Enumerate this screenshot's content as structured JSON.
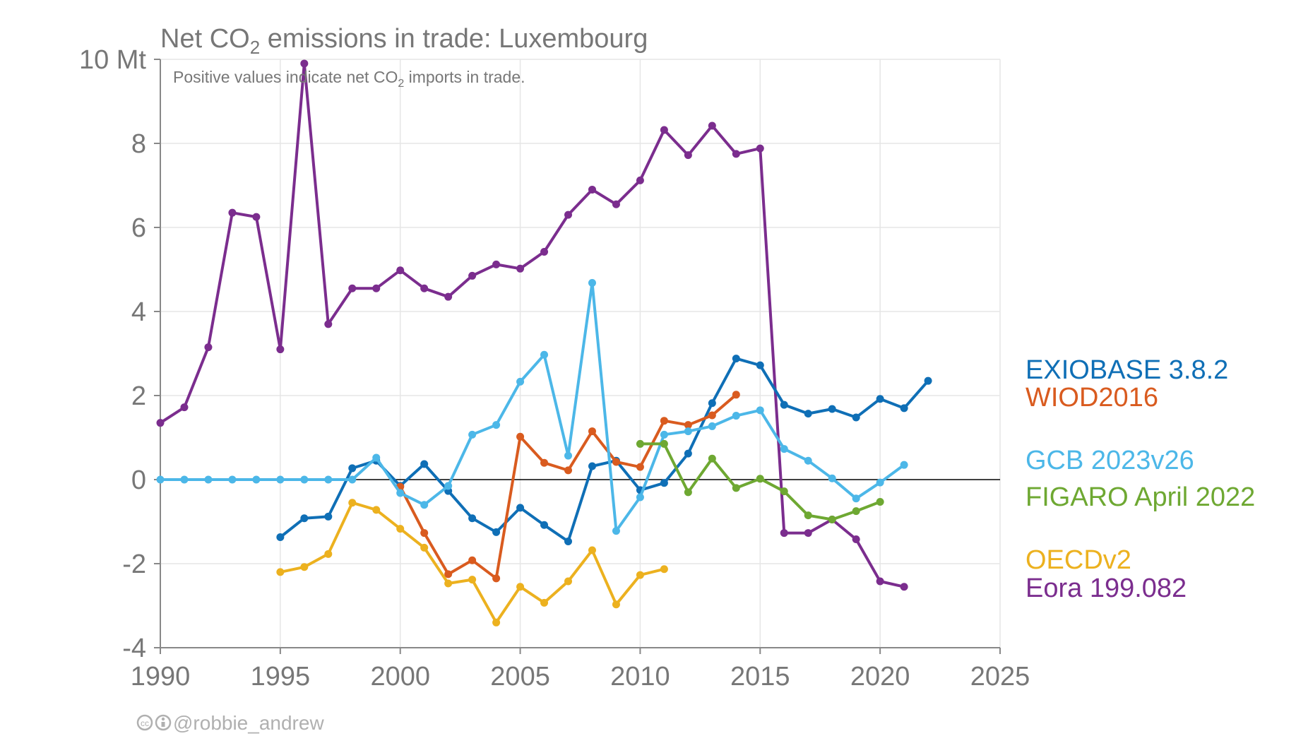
{
  "chart_data": {
    "type": "line",
    "title": "Net CO2 emissions in trade: Luxembourg",
    "title_parts": {
      "before": "Net CO",
      "sub": "2",
      "after": " emissions in trade: Luxembourg"
    },
    "subtitle": "Positive values indicate net CO2 imports in trade.",
    "subtitle_parts": {
      "before": "Positive values indicate net CO",
      "sub": "2",
      "after": " imports in trade."
    },
    "credit": "@robbie_andrew",
    "xlim": [
      1990,
      2025
    ],
    "ylim": [
      -4,
      10
    ],
    "x_ticks": [
      1990,
      1995,
      2000,
      2005,
      2010,
      2015,
      2020,
      2025
    ],
    "y_ticks": [
      -4,
      -2,
      0,
      2,
      4,
      6,
      8,
      10
    ],
    "y_tick_labels": [
      "-4",
      "-2",
      "0",
      "2",
      "4",
      "6",
      "8",
      "10 Mt"
    ],
    "grid": true,
    "legend_placement": "right",
    "series": [
      {
        "name": "Eora 199.082",
        "color": "#7b2d8e",
        "x": [
          1990,
          1991,
          1992,
          1993,
          1994,
          1995,
          1996,
          1997,
          1998,
          1999,
          2000,
          2001,
          2002,
          2003,
          2004,
          2005,
          2006,
          2007,
          2008,
          2009,
          2010,
          2011,
          2012,
          2013,
          2014,
          2015,
          2016,
          2017,
          2018,
          2019,
          2020,
          2021
        ],
        "y": [
          1.35,
          1.72,
          3.15,
          6.35,
          6.25,
          3.1,
          9.9,
          3.7,
          4.55,
          4.55,
          4.98,
          4.55,
          4.35,
          4.85,
          5.12,
          5.02,
          5.42,
          6.3,
          6.9,
          6.55,
          7.12,
          8.32,
          7.72,
          8.42,
          7.75,
          7.88,
          -1.27,
          -1.27,
          -0.95,
          -1.42,
          -2.42,
          -2.55
        ]
      },
      {
        "name": "EXIOBASE 3.8.2",
        "color": "#0f6fb6",
        "x": [
          1995,
          1996,
          1997,
          1998,
          1999,
          2000,
          2001,
          2002,
          2003,
          2004,
          2005,
          2006,
          2007,
          2008,
          2009,
          2010,
          2011,
          2012,
          2013,
          2014,
          2015,
          2016,
          2017,
          2018,
          2019,
          2020,
          2021,
          2022
        ],
        "y": [
          -1.37,
          -0.92,
          -0.88,
          0.27,
          0.45,
          -0.15,
          0.37,
          -0.27,
          -0.92,
          -1.25,
          -0.67,
          -1.08,
          -1.47,
          0.32,
          0.45,
          -0.25,
          -0.08,
          0.62,
          1.82,
          2.88,
          2.72,
          1.78,
          1.57,
          1.68,
          1.48,
          1.92,
          1.7,
          2.35
        ]
      },
      {
        "name": "WIOD2016",
        "color": "#d95b1f",
        "x": [
          2000,
          2001,
          2002,
          2003,
          2004,
          2005,
          2006,
          2007,
          2008,
          2009,
          2010,
          2011,
          2012,
          2013,
          2014
        ],
        "y": [
          -0.17,
          -1.27,
          -2.25,
          -1.92,
          -2.35,
          1.02,
          0.4,
          0.22,
          1.15,
          0.42,
          0.3,
          1.4,
          1.3,
          1.53,
          2.02
        ]
      },
      {
        "name": "GCB 2023v26",
        "color": "#4cb7e8",
        "x": [
          1990,
          1991,
          1992,
          1993,
          1994,
          1995,
          1996,
          1997,
          1998,
          1999,
          2000,
          2001,
          2002,
          2003,
          2004,
          2005,
          2006,
          2007,
          2008,
          2009,
          2010,
          2011,
          2012,
          2013,
          2014,
          2015,
          2016,
          2017,
          2018,
          2019,
          2020,
          2021
        ],
        "y": [
          0,
          0,
          0,
          0,
          0,
          0,
          0,
          0,
          0,
          0.52,
          -0.32,
          -0.6,
          -0.15,
          1.07,
          1.3,
          2.33,
          2.97,
          0.57,
          4.68,
          -1.22,
          -0.42,
          1.07,
          1.15,
          1.27,
          1.52,
          1.65,
          0.73,
          0.45,
          0.03,
          -0.45,
          -0.07,
          0.35
        ]
      },
      {
        "name": "FIGARO April 2022",
        "color": "#6ea832",
        "x": [
          2010,
          2011,
          2012,
          2013,
          2014,
          2015,
          2016,
          2017,
          2018,
          2019,
          2020
        ],
        "y": [
          0.85,
          0.85,
          -0.3,
          0.5,
          -0.2,
          0.02,
          -0.28,
          -0.85,
          -0.95,
          -0.75,
          -0.53
        ]
      },
      {
        "name": "OECDv2",
        "color": "#ecb11f",
        "x": [
          1995,
          1996,
          1997,
          1998,
          1999,
          2000,
          2001,
          2002,
          2003,
          2004,
          2005,
          2006,
          2007,
          2008,
          2009,
          2010,
          2011
        ],
        "y": [
          -2.2,
          -2.08,
          -1.77,
          -0.55,
          -0.72,
          -1.17,
          -1.62,
          -2.47,
          -2.38,
          -3.4,
          -2.55,
          -2.93,
          -2.42,
          -1.68,
          -2.97,
          -2.27,
          -2.13
        ]
      }
    ],
    "legend_order": [
      "EXIOBASE 3.8.2",
      "WIOD2016",
      "GCB 2023v26",
      "FIGARO April 2022",
      "OECDv2",
      "Eora 199.082"
    ]
  }
}
